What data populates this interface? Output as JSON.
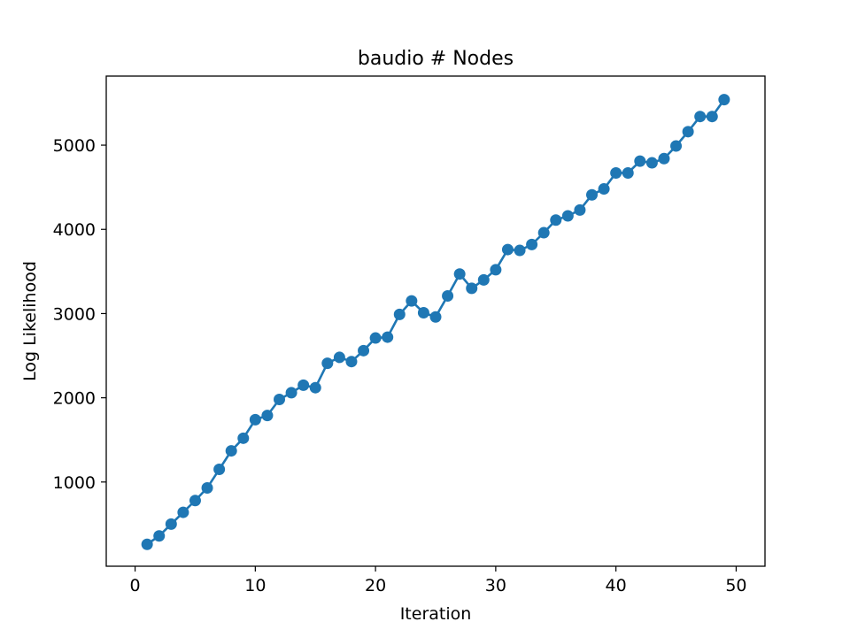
{
  "chart_data": {
    "type": "line",
    "title": "baudio # Nodes",
    "xlabel": "Iteration",
    "ylabel": "Log Likelihood",
    "xlim": [
      -2.4,
      52.4
    ],
    "ylim": [
      0,
      5820
    ],
    "xticks": [
      0,
      10,
      20,
      30,
      40,
      50
    ],
    "yticks": [
      1000,
      2000,
      3000,
      4000,
      5000
    ],
    "series": [
      {
        "name": "baudio",
        "color": "#1f77b4",
        "x": [
          1,
          2,
          3,
          4,
          5,
          6,
          7,
          8,
          9,
          10,
          11,
          12,
          13,
          14,
          15,
          16,
          17,
          18,
          19,
          20,
          21,
          22,
          23,
          24,
          25,
          26,
          27,
          28,
          29,
          30,
          31,
          32,
          33,
          34,
          35,
          36,
          37,
          38,
          39,
          40,
          41,
          42,
          43,
          44,
          45,
          46,
          47,
          48,
          49
        ],
        "y": [
          260,
          360,
          500,
          640,
          780,
          930,
          1150,
          1370,
          1520,
          1740,
          1790,
          1980,
          2060,
          2150,
          2120,
          2410,
          2480,
          2430,
          2560,
          2710,
          2720,
          2990,
          3150,
          3010,
          2960,
          3210,
          3470,
          3300,
          3400,
          3520,
          3760,
          3750,
          3820,
          3960,
          4110,
          4160,
          4230,
          4410,
          4480,
          4670,
          4670,
          4810,
          4790,
          4840,
          4990,
          5160,
          5340,
          5340,
          5540
        ]
      }
    ]
  }
}
